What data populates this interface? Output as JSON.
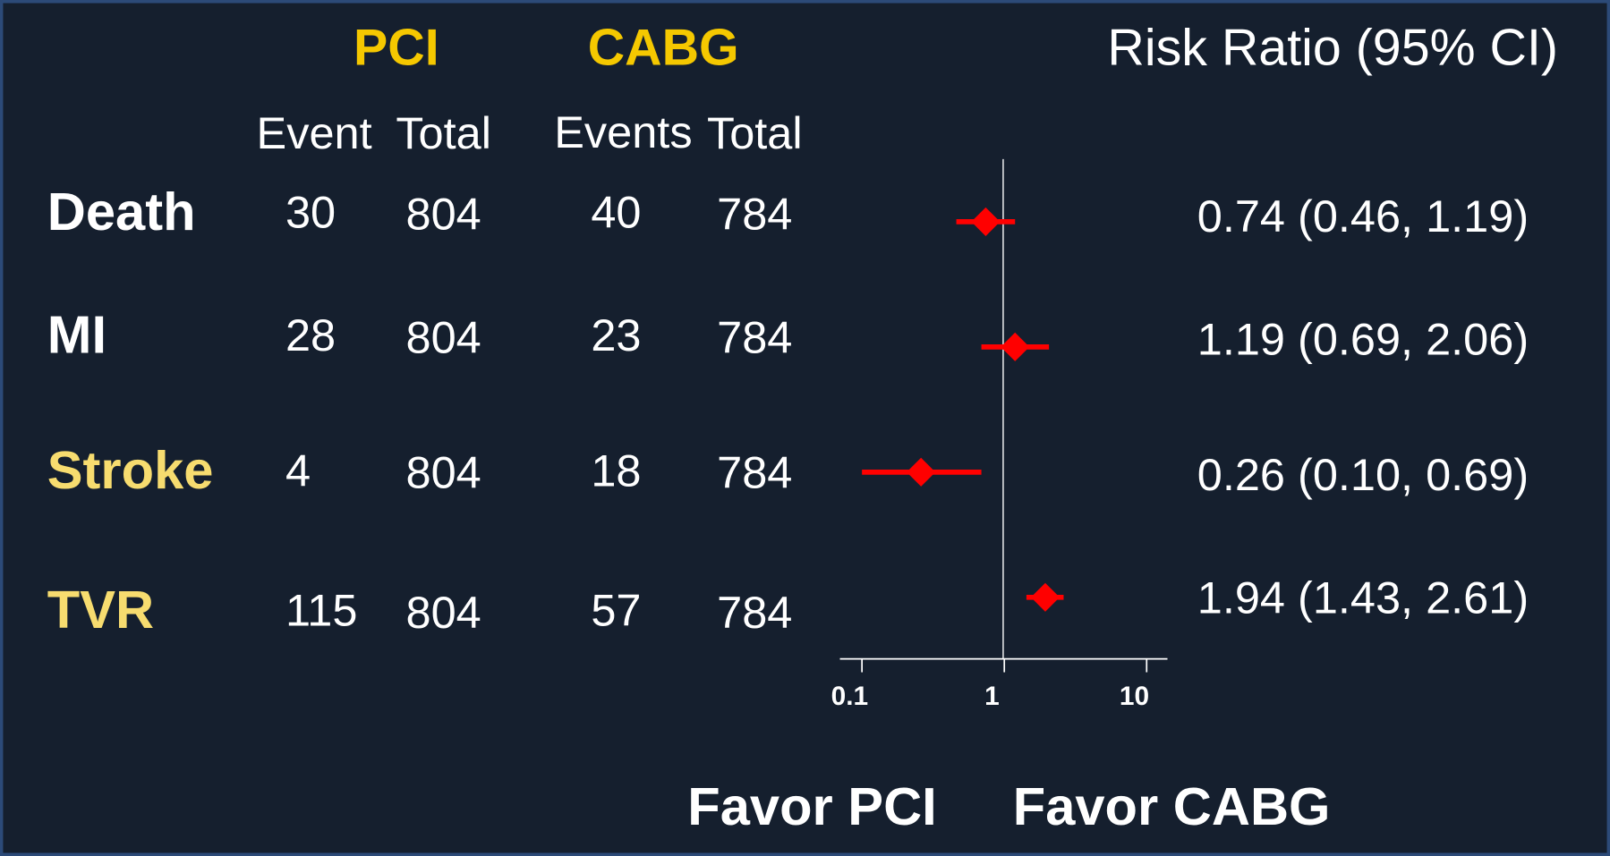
{
  "chart_data": {
    "type": "forest",
    "title": "Risk Ratio (95% CI)",
    "groups": [
      {
        "name": "PCI",
        "columns": [
          "Event",
          "Total"
        ]
      },
      {
        "name": "CABG",
        "columns": [
          "Events",
          "Total"
        ]
      }
    ],
    "categories": [
      "Death",
      "MI",
      "Stroke",
      "TVR"
    ],
    "category_colors": [
      "#ffffff",
      "#ffffff",
      "#f7dc6f",
      "#f7dc6f"
    ],
    "group_color": "#f5c800",
    "pci_events": [
      30,
      28,
      4,
      115
    ],
    "pci_totals": [
      804,
      804,
      804,
      804
    ],
    "cabg_events": [
      40,
      23,
      18,
      57
    ],
    "cabg_totals": [
      784,
      784,
      784,
      784
    ],
    "values": [
      0.74,
      1.19,
      0.26,
      1.94
    ],
    "lower": [
      0.46,
      0.69,
      0.1,
      1.43
    ],
    "upper": [
      1.19,
      2.06,
      0.69,
      2.61
    ],
    "value_labels": [
      "0.74 (0.46, 1.19)",
      "1.19 (0.69, 2.06)",
      "0.26 (0.10, 0.69)",
      "1.94 (1.43, 2.61)"
    ],
    "color": "#ff0000",
    "log_x": true,
    "xlim": [
      0.07,
      14
    ],
    "xticks": [
      0.1,
      1,
      10
    ],
    "x_labels": [
      "Favor PCI",
      "Favor CABG"
    ]
  }
}
